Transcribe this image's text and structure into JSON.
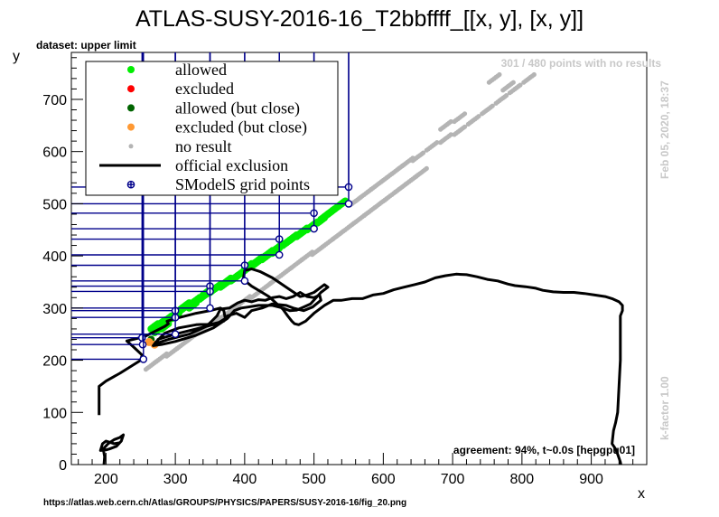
{
  "chart_data": {
    "type": "scatter",
    "title": "ATLAS-SUSY-2016-16_T2bbffff_[[x, y], [x, y]]",
    "subtitle": "dataset: upper limit",
    "xlabel": "x",
    "ylabel": "y",
    "xlim": [
      150,
      980
    ],
    "ylim": [
      0,
      790
    ],
    "x_ticks": [
      200,
      300,
      400,
      500,
      600,
      700,
      800,
      900
    ],
    "y_ticks": [
      0,
      100,
      200,
      300,
      400,
      500,
      600,
      700
    ],
    "legend": {
      "placement": "top-left",
      "entries": [
        {
          "label": "allowed",
          "color": "#00ee00",
          "marker": "dot"
        },
        {
          "label": "excluded",
          "color": "#ff0000",
          "marker": "dot"
        },
        {
          "label": "allowed (but close)",
          "color": "#006400",
          "marker": "dot"
        },
        {
          "label": "excluded (but close)",
          "color": "#ff9933",
          "marker": "dot"
        },
        {
          "label": "no result",
          "color": "#b4b4b4",
          "marker": "small-dot"
        },
        {
          "label": "official exclusion",
          "color": "#000000",
          "marker": "line"
        },
        {
          "label": "SModelS grid points",
          "color": "#00008b",
          "marker": "cross-circle"
        }
      ]
    },
    "series": [
      {
        "name": "allowed",
        "color": "#00ee00",
        "points": [
          [
            270,
            265
          ],
          [
            280,
            272
          ],
          [
            290,
            280
          ],
          [
            305,
            295
          ],
          [
            315,
            305
          ],
          [
            330,
            315
          ],
          [
            345,
            330
          ],
          [
            360,
            340
          ],
          [
            375,
            352
          ],
          [
            390,
            362
          ],
          [
            405,
            380
          ],
          [
            420,
            392
          ],
          [
            435,
            405
          ],
          [
            450,
            418
          ],
          [
            465,
            430
          ],
          [
            480,
            442
          ],
          [
            495,
            455
          ],
          [
            510,
            468
          ],
          [
            525,
            485
          ],
          [
            540,
            500
          ],
          [
            275,
            258
          ],
          [
            285,
            265
          ],
          [
            300,
            285
          ],
          [
            310,
            298
          ],
          [
            325,
            305
          ],
          [
            340,
            322
          ],
          [
            355,
            335
          ],
          [
            370,
            345
          ],
          [
            385,
            357
          ],
          [
            400,
            372
          ],
          [
            415,
            385
          ],
          [
            430,
            398
          ],
          [
            445,
            410
          ],
          [
            460,
            425
          ],
          [
            470,
            435
          ],
          [
            485,
            448
          ],
          [
            500,
            460
          ],
          [
            515,
            475
          ],
          [
            530,
            490
          ]
        ]
      },
      {
        "name": "excluded",
        "color": "#ff0000",
        "points": [
          [
            254,
            201
          ]
        ]
      },
      {
        "name": "allowed (but close)",
        "color": "#006400",
        "points": [
          [
            265,
            240
          ]
        ]
      },
      {
        "name": "excluded (but close)",
        "color": "#ff9933",
        "points": [
          [
            262,
            235
          ],
          [
            270,
            230
          ]
        ]
      },
      {
        "name": "no result",
        "color": "#b4b4b4",
        "points": [
          [
            265,
            190
          ],
          [
            280,
            205
          ],
          [
            295,
            215
          ],
          [
            310,
            230
          ],
          [
            325,
            245
          ],
          [
            340,
            260
          ],
          [
            355,
            275
          ],
          [
            370,
            285
          ],
          [
            385,
            300
          ],
          [
            400,
            315
          ],
          [
            415,
            325
          ],
          [
            430,
            340
          ],
          [
            445,
            355
          ],
          [
            460,
            370
          ],
          [
            475,
            385
          ],
          [
            490,
            400
          ],
          [
            505,
            410
          ],
          [
            520,
            425
          ],
          [
            535,
            440
          ],
          [
            550,
            455
          ],
          [
            565,
            470
          ],
          [
            580,
            485
          ],
          [
            595,
            500
          ],
          [
            610,
            515
          ],
          [
            625,
            530
          ],
          [
            640,
            545
          ],
          [
            655,
            560
          ],
          [
            560,
            505
          ],
          [
            575,
            520
          ],
          [
            590,
            535
          ],
          [
            605,
            550
          ],
          [
            620,
            565
          ],
          [
            635,
            580
          ],
          [
            650,
            590
          ],
          [
            670,
            610
          ],
          [
            690,
            625
          ],
          [
            710,
            640
          ],
          [
            730,
            660
          ],
          [
            750,
            680
          ],
          [
            770,
            700
          ],
          [
            790,
            720
          ],
          [
            810,
            740
          ],
          [
            690,
            650
          ],
          [
            710,
            665
          ],
          [
            760,
            740
          ],
          [
            780,
            725
          ]
        ]
      },
      {
        "name": "SModelS grid points",
        "color": "#00008b",
        "points": [
          [
            252,
            243
          ],
          [
            253,
            230
          ],
          [
            254,
            202
          ],
          [
            300,
            295
          ],
          [
            300,
            282
          ],
          [
            300,
            250
          ],
          [
            350,
            342
          ],
          [
            350,
            332
          ],
          [
            350,
            300
          ],
          [
            400,
            382
          ],
          [
            400,
            352
          ],
          [
            450,
            432
          ],
          [
            450,
            402
          ],
          [
            500,
            482
          ],
          [
            500,
            452
          ],
          [
            550,
            532
          ],
          [
            550,
            500
          ]
        ]
      }
    ],
    "exclusion_line": [
      [
        190,
        95
      ],
      [
        190,
        150
      ],
      [
        200,
        160
      ],
      [
        220,
        175
      ],
      [
        250,
        200
      ],
      [
        252,
        210
      ],
      [
        240,
        225
      ],
      [
        230,
        237
      ],
      [
        255,
        245
      ],
      [
        270,
        255
      ],
      [
        285,
        265
      ],
      [
        290,
        270
      ],
      [
        288,
        275
      ],
      [
        300,
        280
      ],
      [
        330,
        290
      ],
      [
        350,
        295
      ],
      [
        365,
        300
      ],
      [
        370,
        295
      ],
      [
        372,
        280
      ],
      [
        360,
        270
      ],
      [
        330,
        260
      ],
      [
        300,
        250
      ],
      [
        275,
        240
      ],
      [
        272,
        232
      ],
      [
        290,
        240
      ],
      [
        320,
        250
      ],
      [
        345,
        265
      ],
      [
        360,
        285
      ],
      [
        365,
        298
      ],
      [
        378,
        300
      ],
      [
        390,
        310
      ],
      [
        400,
        315
      ],
      [
        410,
        312
      ],
      [
        420,
        316
      ],
      [
        430,
        315
      ],
      [
        440,
        320
      ],
      [
        450,
        322
      ],
      [
        460,
        318
      ],
      [
        470,
        322
      ],
      [
        480,
        330
      ],
      [
        490,
        322
      ],
      [
        500,
        320
      ],
      [
        508,
        325
      ],
      [
        510,
        315
      ],
      [
        498,
        302
      ],
      [
        485,
        295
      ],
      [
        470,
        300
      ],
      [
        460,
        305
      ],
      [
        440,
        308
      ],
      [
        425,
        300
      ],
      [
        410,
        295
      ],
      [
        400,
        282
      ],
      [
        388,
        290
      ],
      [
        375,
        285
      ],
      [
        370,
        275
      ],
      [
        355,
        270
      ],
      [
        330,
        268
      ],
      [
        305,
        262
      ],
      [
        285,
        252
      ],
      [
        272,
        235
      ],
      [
        268,
        228
      ],
      [
        280,
        230
      ],
      [
        300,
        236
      ],
      [
        330,
        248
      ],
      [
        355,
        262
      ],
      [
        375,
        280
      ],
      [
        385,
        295
      ],
      [
        395,
        300
      ],
      [
        405,
        302
      ],
      [
        420,
        305
      ],
      [
        440,
        305
      ],
      [
        455,
        300
      ],
      [
        465,
        295
      ],
      [
        475,
        296
      ],
      [
        485,
        302
      ],
      [
        495,
        308
      ],
      [
        502,
        318
      ],
      [
        510,
        330
      ],
      [
        520,
        340
      ],
      [
        515,
        345
      ],
      [
        500,
        330
      ],
      [
        490,
        325
      ],
      [
        480,
        322
      ],
      [
        462,
        338
      ],
      [
        440,
        358
      ],
      [
        422,
        370
      ],
      [
        410,
        375
      ],
      [
        400,
        372
      ],
      [
        398,
        355
      ],
      [
        410,
        342
      ],
      [
        425,
        330
      ],
      [
        435,
        322
      ],
      [
        445,
        310
      ],
      [
        455,
        298
      ],
      [
        462,
        285
      ],
      [
        468,
        275
      ],
      [
        472,
        270
      ],
      [
        478,
        268
      ],
      [
        488,
        275
      ],
      [
        500,
        290
      ],
      [
        515,
        305
      ],
      [
        528,
        315
      ],
      [
        540,
        315
      ],
      [
        555,
        318
      ],
      [
        570,
        318
      ],
      [
        585,
        325
      ],
      [
        600,
        328
      ],
      [
        615,
        335
      ],
      [
        630,
        340
      ],
      [
        645,
        345
      ],
      [
        660,
        350
      ],
      [
        675,
        358
      ],
      [
        690,
        362
      ],
      [
        705,
        365
      ],
      [
        720,
        364
      ],
      [
        735,
        360
      ],
      [
        750,
        355
      ],
      [
        765,
        352
      ],
      [
        780,
        346
      ],
      [
        790,
        343
      ],
      [
        805,
        341
      ],
      [
        820,
        338
      ],
      [
        830,
        334
      ],
      [
        845,
        331
      ],
      [
        860,
        330
      ],
      [
        875,
        330
      ],
      [
        890,
        328
      ],
      [
        905,
        325
      ],
      [
        920,
        322
      ],
      [
        930,
        318
      ],
      [
        940,
        312
      ],
      [
        945,
        305
      ],
      [
        945,
        295
      ],
      [
        942,
        285
      ],
      [
        942,
        200
      ],
      [
        940,
        150
      ],
      [
        938,
        100
      ],
      [
        935,
        80
      ],
      [
        932,
        65
      ],
      [
        930,
        40
      ],
      [
        935,
        30
      ],
      [
        938,
        20
      ],
      [
        942,
        5
      ],
      [
        944,
        -10
      ]
    ],
    "exclusion_line_low": [
      [
        195,
        -10
      ],
      [
        197,
        0
      ],
      [
        198,
        15
      ],
      [
        196,
        30
      ],
      [
        203,
        40
      ],
      [
        212,
        48
      ],
      [
        220,
        52
      ],
      [
        225,
        57
      ],
      [
        222,
        45
      ],
      [
        215,
        35
      ],
      [
        205,
        30
      ],
      [
        200,
        28
      ],
      [
        192,
        27
      ],
      [
        195,
        40
      ],
      [
        200,
        45
      ],
      [
        212,
        40
      ],
      [
        220,
        42
      ]
    ],
    "annotations": {
      "points_no_result": "301 / 480 points with no results",
      "timestamp": "Feb 05, 2020, 18:37",
      "kfactor": "k-factor 1.00",
      "agreement": "agreement: 94%, t~0.0s [hepgpu01]",
      "source_url": "https://atlas.web.cern.ch/Atlas/GROUPS/PHYSICS/PAPERS/SUSY-2016-16/fig_20.png"
    },
    "grid": false
  }
}
